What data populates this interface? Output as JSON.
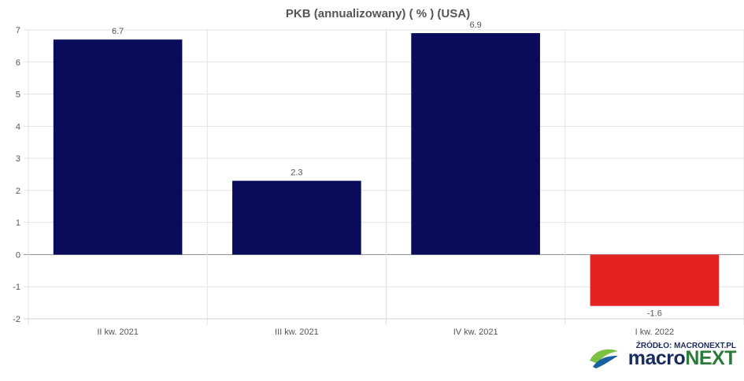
{
  "chart_data": {
    "type": "bar",
    "title": "PKB (annualizowany) ( % ) (USA)",
    "categories": [
      "II kw. 2021",
      "III kw. 2021",
      "IV kw. 2021",
      "I kw. 2022"
    ],
    "values": [
      6.7,
      2.3,
      6.9,
      -1.6
    ],
    "value_labels": [
      "6.7",
      "2.3",
      "6.9",
      "-1.6"
    ],
    "ylim": [
      -2,
      7
    ],
    "yticks": [
      "7",
      "6",
      "5",
      "4",
      "3",
      "2",
      "1",
      "0",
      "-1",
      "-2"
    ],
    "xlabel": "",
    "ylabel": "",
    "grid": true,
    "colors": {
      "positive": "#0b0b5b",
      "negative": "#e52222"
    }
  },
  "source": {
    "label": "ŹRÓDŁO: MACRONEXT.PL",
    "brand_part1": "macro",
    "brand_part2": "NEXT",
    "logo_icon": "leaf-swoosh-icon"
  }
}
